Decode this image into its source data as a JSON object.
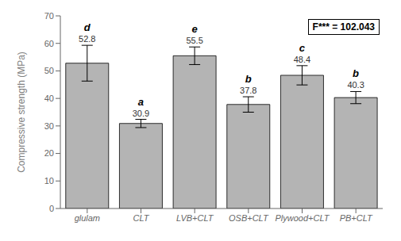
{
  "chart_data": {
    "type": "bar",
    "categories": [
      "glulam",
      "CLT",
      "LVB+CLT",
      "OSB+CLT",
      "Plywood+CLT",
      "PB+CLT"
    ],
    "values": [
      52.8,
      30.9,
      55.5,
      37.8,
      48.4,
      40.3
    ],
    "errors": [
      6.5,
      1.5,
      3.2,
      2.8,
      3.5,
      2.2
    ],
    "letters": [
      "d",
      "a",
      "e",
      "b",
      "c",
      "b"
    ],
    "color": "#b4b4b4",
    "ylabel": "Compressive strength (MPa)",
    "ylim": [
      0,
      70
    ],
    "yticks": [
      0,
      10,
      20,
      30,
      40,
      50,
      60,
      70
    ],
    "annotation": "F*** = 102.043",
    "data_labels": true,
    "grid": false
  }
}
